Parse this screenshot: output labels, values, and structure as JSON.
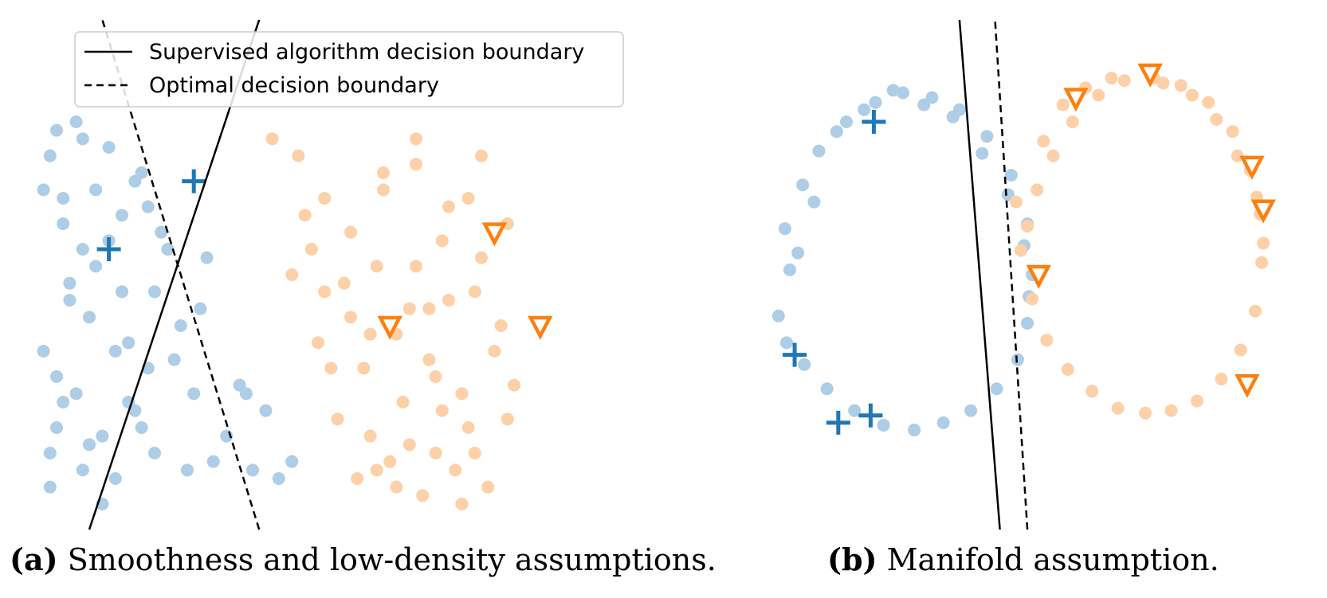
{
  "colors": {
    "class_a_light": "#aecde6",
    "class_a_dark": "#1f77b4",
    "class_b_light": "#fdd0a8",
    "class_b_dark": "#ff7f0e",
    "boundary": "#000000"
  },
  "legend": {
    "entries": [
      {
        "label": "Supervised algorithm decision boundary",
        "style": "solid"
      },
      {
        "label": "Optimal decision boundary",
        "style": "dashed"
      }
    ],
    "placement": "top-left of panel a"
  },
  "captions": {
    "a_tag": "(a)",
    "a_text": "Smoothness and low-density assumptions.",
    "b_tag": "(b)",
    "b_text": "Manifold assumption."
  },
  "chart_data": [
    {
      "type": "scatter",
      "panel": "a",
      "title": "",
      "xlabel": "",
      "ylabel": "",
      "axes_visible": false,
      "xlim": [
        0,
        10
      ],
      "ylim": [
        0,
        6
      ],
      "boundaries": [
        {
          "name": "Supervised algorithm decision boundary",
          "style": "solid",
          "points": [
            [
              1.0,
              0.0
            ],
            [
              3.6,
              6.0
            ]
          ]
        },
        {
          "name": "Optimal decision boundary",
          "style": "dashed",
          "points": [
            [
              3.6,
              0.0
            ],
            [
              1.2,
              6.0
            ]
          ]
        }
      ],
      "series": [
        {
          "class": "blue",
          "role": "unlabeled",
          "marker": "circle",
          "x": [
            0.5,
            0.4,
            0.6,
            0.9,
            1.1,
            1.3,
            1.5,
            1.8,
            2.1,
            0.7,
            1.0,
            1.6,
            0.3,
            0.8,
            1.2,
            1.7,
            2.0,
            0.5,
            0.9,
            1.4,
            1.9,
            0.4,
            0.7,
            1.1,
            1.5,
            1.8,
            0.6,
            1.0,
            1.3,
            0.3,
            0.8,
            2.2,
            2.4,
            1.6,
            0.5,
            1.2,
            2.0,
            2.6,
            0.4,
            1.9,
            2.3,
            2.8,
            3.1,
            3.4,
            3.7,
            2.5,
            0.6,
            1.4,
            0.9,
            1.7,
            2.9,
            3.3,
            3.9,
            4.1,
            3.5,
            2.7
          ],
          "y": [
            4.7,
            4.4,
            3.9,
            3.3,
            4.0,
            4.5,
            3.7,
            4.2,
            3.5,
            2.9,
            2.5,
            2.2,
            2.1,
            1.6,
            1.1,
            1.4,
            0.9,
            1.8,
            0.7,
            0.6,
            1.9,
            0.5,
            2.7,
            3.1,
            2.8,
            1.2,
            3.6,
            1.0,
            3.4,
            4.0,
            4.8,
            3.3,
            2.4,
            1.5,
            1.2,
            0.3,
            2.8,
            1.6,
            0.9,
            3.8,
            2.0,
            3.2,
            1.1,
            1.6,
            1.4,
            0.7,
            1.5,
            2.1,
            4.6,
            4.1,
            0.8,
            1.7,
            0.6,
            0.8,
            0.7,
            2.6
          ]
        },
        {
          "class": "orange",
          "role": "unlabeled",
          "marker": "circle",
          "x": [
            3.8,
            4.2,
            4.6,
            5.0,
            5.5,
            6.0,
            6.5,
            7.0,
            7.4,
            4.4,
            4.9,
            5.4,
            5.9,
            6.4,
            6.9,
            7.3,
            4.5,
            5.2,
            5.7,
            6.2,
            6.7,
            7.2,
            4.8,
            5.3,
            5.8,
            6.3,
            6.8,
            4.3,
            5.1,
            5.6,
            6.1,
            6.6,
            7.1,
            7.5,
            4.7,
            5.5,
            6.0,
            6.5,
            7.0,
            5.0,
            5.9,
            6.4,
            6.9,
            7.4,
            4.6,
            5.3,
            6.2,
            6.7,
            4.1,
            5.7,
            6.3,
            5.4,
            6.0,
            6.8
          ],
          "y": [
            4.6,
            4.4,
            3.9,
            3.5,
            4.2,
            4.6,
            3.8,
            4.4,
            3.6,
            3.3,
            2.9,
            3.1,
            2.6,
            3.4,
            2.8,
            2.4,
            2.2,
            1.9,
            2.3,
            2.0,
            1.6,
            2.1,
            1.3,
            1.1,
            1.5,
            0.9,
            1.2,
            3.7,
            0.6,
            0.8,
            0.4,
            0.7,
            0.5,
            1.7,
            1.9,
            4.0,
            3.1,
            2.7,
            3.2,
            2.5,
            1.0,
            1.4,
            0.9,
            1.3,
            2.8,
            2.3,
            2.6,
            0.3,
            3.0,
            0.5,
            1.8,
            0.7,
            4.3,
            3.9
          ]
        },
        {
          "class": "blue",
          "role": "labeled",
          "marker": "plus",
          "x": [
            2.6,
            1.3
          ],
          "y": [
            4.1,
            3.3
          ]
        },
        {
          "class": "orange",
          "role": "labeled",
          "marker": "triangle_down",
          "x": [
            7.2,
            5.6,
            7.9
          ],
          "y": [
            3.5,
            2.4,
            2.4
          ]
        }
      ]
    },
    {
      "type": "scatter",
      "panel": "b",
      "title": "",
      "xlabel": "",
      "ylabel": "",
      "axes_visible": false,
      "xlim": [
        -1.3,
        2.3
      ],
      "ylim": [
        -0.8,
        1.3
      ],
      "boundaries": [
        {
          "name": "Supervised algorithm decision boundary",
          "style": "solid",
          "points": [
            [
              0.35,
              -0.8
            ],
            [
              0.1,
              1.3
            ]
          ]
        },
        {
          "name": "Optimal decision boundary",
          "style": "dashed",
          "points": [
            [
              0.52,
              -0.8
            ],
            [
              0.32,
              1.3
            ]
          ]
        }
      ],
      "series": [
        {
          "class": "blue",
          "role": "unlabeled",
          "marker": "circle",
          "x": [
            -1.02,
            -0.95,
            -0.98,
            -0.87,
            -0.77,
            -0.6,
            -0.42,
            -0.25,
            -0.07,
            0.1,
            0.27,
            0.42,
            0.52,
            0.55,
            0.52,
            0.46,
            0.33,
            0.17,
            0.0,
            -0.18,
            -0.37,
            -0.55,
            -0.72,
            -0.86,
            -0.97,
            -0.9,
            -0.8,
            -0.66,
            -0.49,
            -0.31,
            -0.12,
            0.06,
            0.24,
            0.4,
            0.5,
            0.53
          ],
          "y": [
            0.08,
            0.27,
            0.44,
            0.62,
            0.76,
            0.88,
            0.96,
            1.0,
            0.98,
            0.93,
            0.82,
            0.66,
            0.46,
            0.25,
            0.05,
            -0.1,
            -0.22,
            -0.31,
            -0.36,
            -0.39,
            -0.37,
            -0.31,
            -0.22,
            -0.12,
            -0.03,
            0.34,
            0.55,
            0.84,
            0.93,
            1.01,
            0.95,
            0.9,
            0.75,
            0.58,
            0.37,
            0.16
          ]
        },
        {
          "class": "orange",
          "role": "unlabeled",
          "marker": "circle",
          "x": [
            0.45,
            0.48,
            0.55,
            0.64,
            0.77,
            0.92,
            1.08,
            1.25,
            1.41,
            1.57,
            1.72,
            1.84,
            1.93,
            1.97,
            1.96,
            1.9,
            1.79,
            1.64,
            1.47,
            1.3,
            1.12,
            0.96,
            0.8,
            0.68,
            0.58,
            0.52,
            0.62,
            0.74,
            0.88,
            1.04,
            1.36,
            1.54,
            1.69,
            1.82,
            1.94,
            1.98
          ],
          "y": [
            0.55,
            0.35,
            0.15,
            -0.02,
            -0.14,
            -0.23,
            -0.3,
            -0.32,
            -0.31,
            -0.27,
            -0.18,
            -0.06,
            0.1,
            0.3,
            0.5,
            0.68,
            0.84,
            0.96,
            1.03,
            1.06,
            1.05,
            0.99,
            0.88,
            0.74,
            0.6,
            0.45,
            0.8,
            0.95,
            1.02,
            1.06,
            1.04,
            0.99,
            0.89,
            0.74,
            0.57,
            0.38
          ]
        },
        {
          "class": "blue",
          "role": "labeled",
          "marker": "plus",
          "x": [
            -0.43,
            -0.92,
            -0.65,
            -0.45
          ],
          "y": [
            0.88,
            -0.08,
            -0.36,
            -0.33
          ]
        },
        {
          "class": "orange",
          "role": "labeled",
          "marker": "triangle_down",
          "x": [
            1.28,
            0.82,
            1.91,
            1.98,
            0.59,
            1.88
          ],
          "y": [
            1.08,
            0.98,
            0.7,
            0.52,
            0.25,
            -0.2
          ]
        }
      ]
    }
  ]
}
